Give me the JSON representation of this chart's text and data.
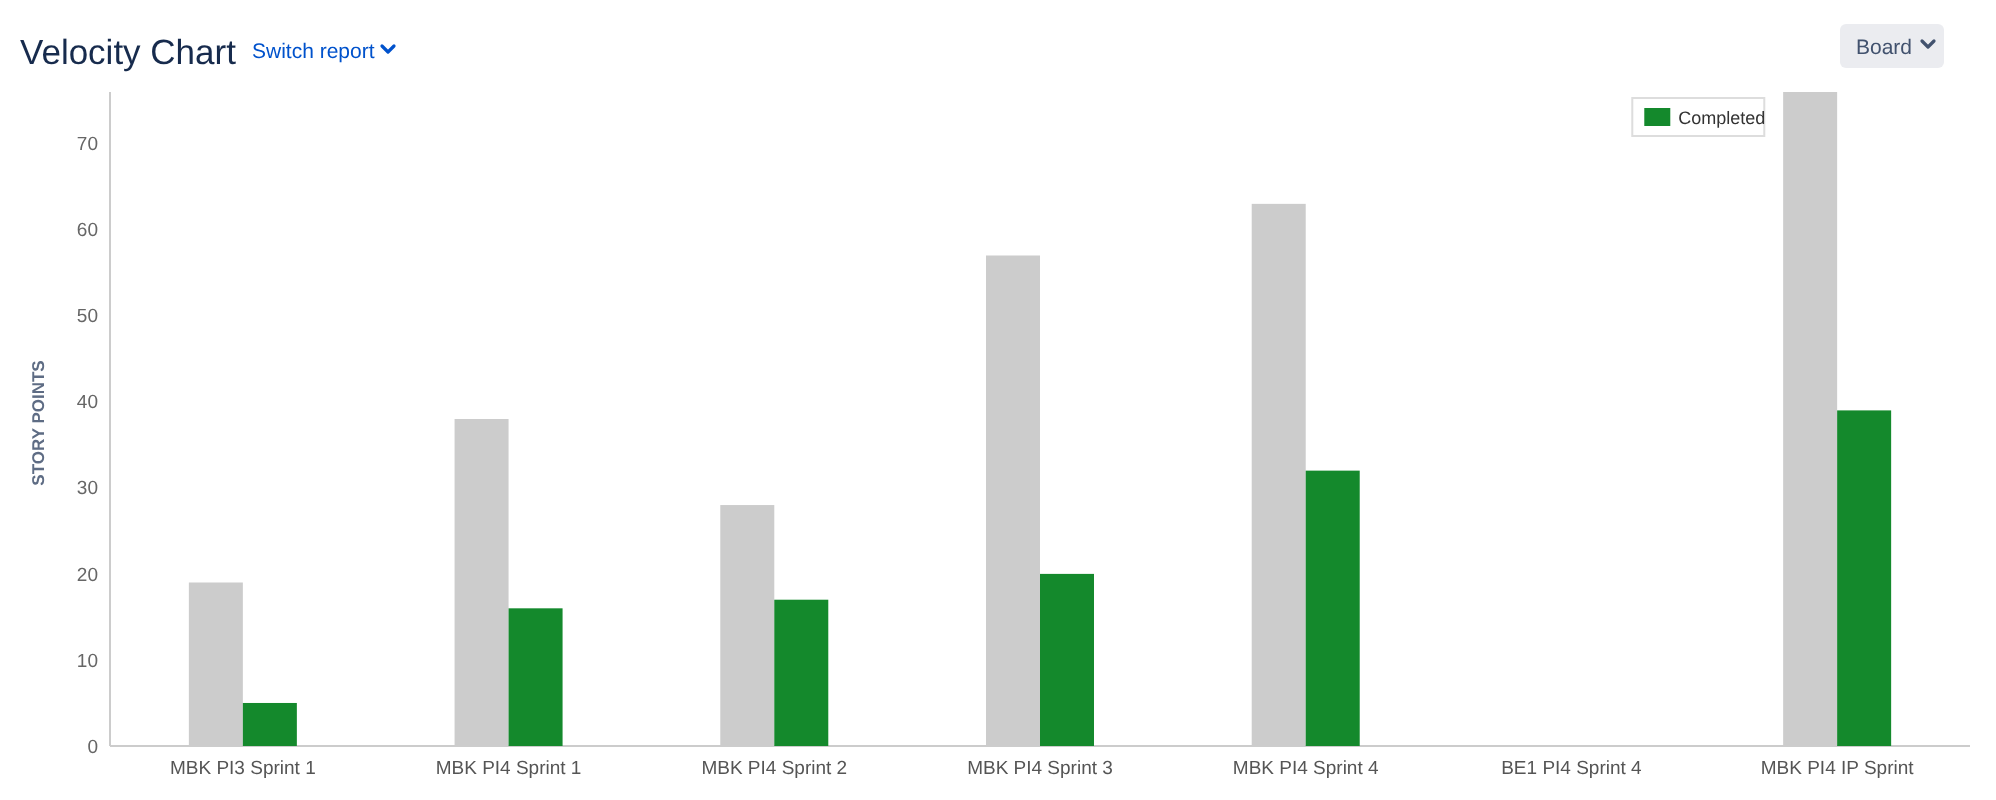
{
  "chart_data": {
    "type": "bar",
    "title": "Velocity Chart",
    "annotations": [
      "Switch report",
      "Board"
    ],
    "ylabel": "STORY POINTS",
    "categories": [
      "MBK PI3 Sprint 1",
      "MBK PI4 Sprint 1",
      "MBK PI4 Sprint 2",
      "MBK PI4 Sprint 3",
      "MBK PI4 Sprint 4",
      "BE1 PI4 Sprint 4",
      "MBK PI4 IP Sprint"
    ],
    "series": [
      {
        "color": "#cccccc",
        "values": [
          19,
          38,
          28,
          57,
          63,
          null,
          76
        ]
      },
      {
        "name": "Completed",
        "color": "#14892c",
        "values": [
          5,
          16,
          17,
          20,
          32,
          null,
          39
        ]
      }
    ],
    "ylim": [
      0,
      76
    ],
    "yticks": [
      0,
      10,
      20,
      30,
      40,
      50,
      60,
      70
    ],
    "legend": "top right"
  }
}
